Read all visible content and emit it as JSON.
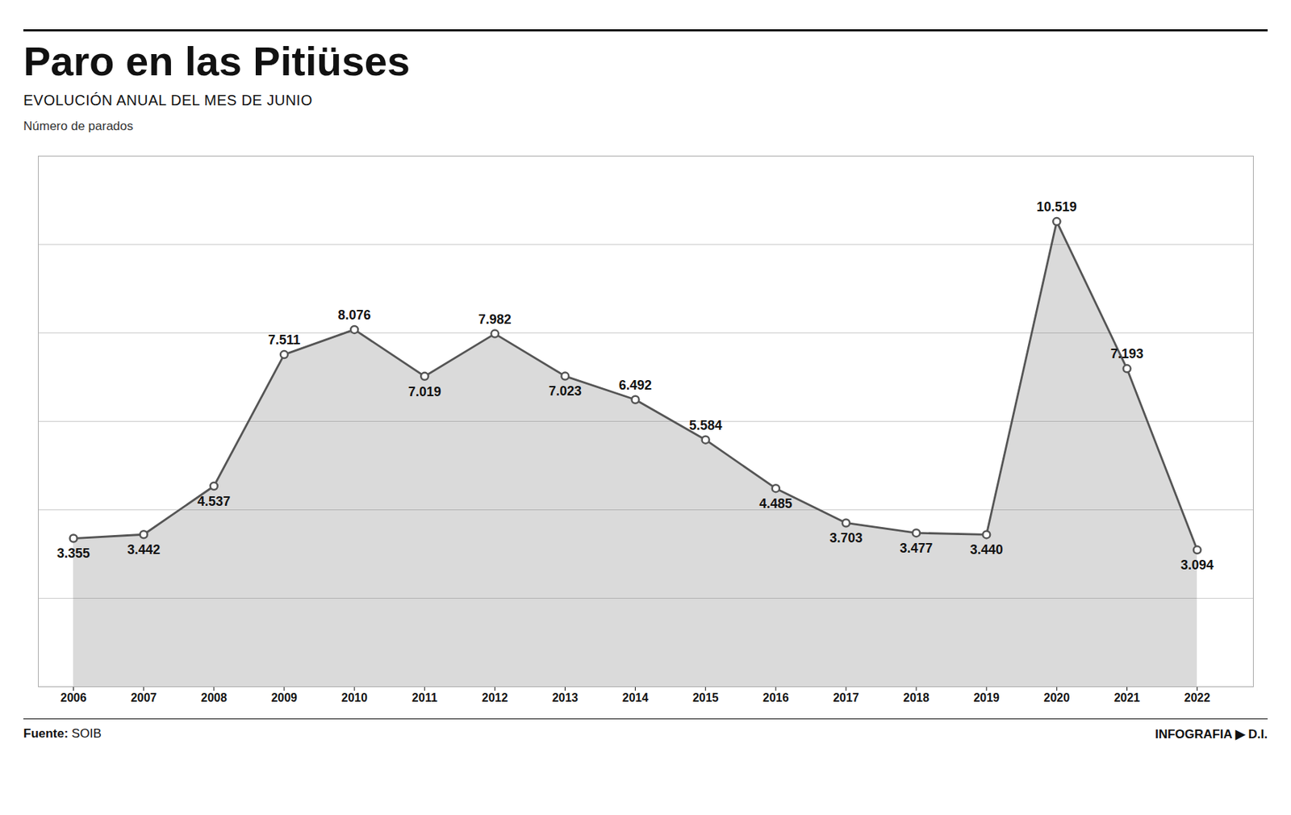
{
  "chart_data": {
    "type": "area",
    "title": "Paro en las Pitiüses",
    "subtitle": "EVOLUCIÓN ANUAL DEL MES DE JUNIO",
    "ylabel": "Número de parados",
    "annotations": [
      "Fuente: SOIB",
      "INFOGRAFIA ▶ D.I."
    ],
    "x": [
      2006,
      2007,
      2008,
      2009,
      2010,
      2011,
      2012,
      2013,
      2014,
      2015,
      2016,
      2017,
      2018,
      2019,
      2020,
      2021,
      2022
    ],
    "values": [
      3355,
      3442,
      4537,
      7511,
      8076,
      7019,
      7982,
      7023,
      6492,
      5584,
      4485,
      3703,
      3477,
      3440,
      10519,
      7193,
      3094
    ],
    "value_labels": [
      "3.355",
      "3.442",
      "4.537",
      "7.511",
      "8.076",
      "7.019",
      "7.982",
      "7.023",
      "6.492",
      "5.584",
      "4.485",
      "3.703",
      "3.477",
      "3.440",
      "10.519",
      "7.193",
      "3.094"
    ],
    "data_labels": true,
    "color": "#555555",
    "marker": "circle",
    "xlim": [
      2005.5,
      2022.8
    ],
    "xticks": [
      2006,
      2007,
      2008,
      2009,
      2010,
      2011,
      2012,
      2013,
      2014,
      2015,
      2016,
      2017,
      2018,
      2019,
      2020,
      2021,
      2022
    ],
    "ylim": [
      0,
      12000
    ],
    "yticks": [
      0,
      2000,
      4000,
      6000,
      8000,
      10000,
      12000
    ],
    "grid": true,
    "tick_labels": "x"
  }
}
